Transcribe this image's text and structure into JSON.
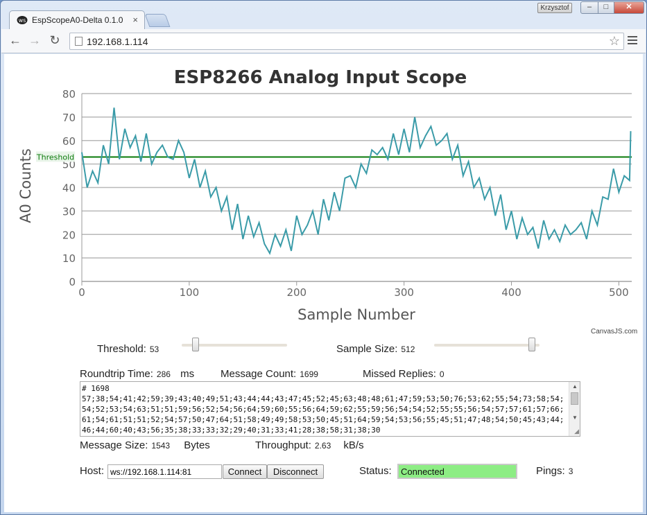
{
  "browser": {
    "tab_title": "EspScopeA0-Delta 0.1.0",
    "user": "Krzysztof",
    "url": "192.168.1.114"
  },
  "chart_data": {
    "type": "line",
    "title": "ESP8266 Analog Input Scope",
    "xlabel": "Sample Number",
    "ylabel": "A0 Counts",
    "xlim": [
      0,
      512
    ],
    "ylim": [
      0,
      80
    ],
    "x_ticks": [
      0,
      100,
      200,
      300,
      400,
      500
    ],
    "y_ticks": [
      0,
      10,
      20,
      30,
      40,
      50,
      60,
      70,
      80
    ],
    "grid": true,
    "line_color": "#3a9ba8",
    "threshold": {
      "label": "Threshold",
      "value": 53,
      "color": "#0a7a0a"
    },
    "series": [
      {
        "x": [
          0,
          5,
          10,
          15,
          20,
          25,
          30,
          35,
          40,
          45,
          50,
          55,
          60,
          65,
          70,
          75,
          80,
          85,
          90,
          95,
          100,
          105,
          110,
          115,
          120,
          125,
          130,
          135,
          140,
          145,
          150,
          155,
          160,
          165,
          170,
          175,
          180,
          185,
          190,
          195,
          200,
          205,
          210,
          215,
          220,
          225,
          230,
          235,
          240,
          245,
          250,
          255,
          260,
          265,
          270,
          275,
          280,
          285,
          290,
          295,
          300,
          305,
          310,
          315,
          320,
          325,
          330,
          335,
          340,
          345,
          350,
          355,
          360,
          365,
          370,
          375,
          380,
          385,
          390,
          395,
          400,
          405,
          410,
          415,
          420,
          425,
          430,
          435,
          440,
          445,
          450,
          455,
          460,
          465,
          470,
          475,
          480,
          485,
          490,
          495,
          500,
          505,
          510,
          511
        ],
        "y": [
          55,
          40,
          47,
          42,
          58,
          50,
          74,
          52,
          65,
          57,
          62,
          51,
          63,
          50,
          55,
          58,
          53,
          52,
          60,
          55,
          44,
          52,
          40,
          47,
          36,
          40,
          30,
          36,
          22,
          33,
          18,
          28,
          19,
          25,
          16,
          12,
          20,
          15,
          22,
          13,
          28,
          20,
          24,
          30,
          20,
          35,
          26,
          38,
          30,
          44,
          45,
          40,
          50,
          46,
          56,
          54,
          57,
          52,
          63,
          54,
          65,
          55,
          70,
          57,
          62,
          66,
          58,
          60,
          63,
          52,
          58,
          45,
          51,
          40,
          44,
          35,
          40,
          28,
          37,
          22,
          30,
          18,
          27,
          20,
          23,
          14,
          26,
          18,
          22,
          17,
          24,
          20,
          22,
          25,
          18,
          30,
          24,
          36,
          35,
          48,
          38,
          45,
          43,
          64
        ]
      }
    ]
  },
  "canvasjs_credit": "CanvasJS.com",
  "controls": {
    "threshold_label": "Threshold:",
    "threshold_value": "53",
    "threshold_fraction": 0.104,
    "sample_size_label": "Sample Size:",
    "sample_size_value": "512",
    "sample_size_fraction": 0.96
  },
  "stats": {
    "roundtrip_label": "Roundtrip Time:",
    "roundtrip_value": "286",
    "roundtrip_unit": "ms",
    "message_count_label": "Message Count:",
    "message_count_value": "1699",
    "missed_label": "Missed Replies:",
    "missed_value": "0",
    "message_size_label": "Message Size:",
    "message_size_value": "1543",
    "message_size_unit": "Bytes",
    "throughput_label": "Throughput:",
    "throughput_value": "2.63",
    "throughput_unit": "kB/s"
  },
  "log_text": "# 1698\n57;38;54;41;42;59;39;43;40;49;51;43;44;44;43;47;45;52;45;63;48;48;61;47;59;53;50;76;53;62;55;54;73;58;54;54;52;53;54;63;51;51;59;56;52;54;56;64;59;60;55;56;64;59;62;55;59;56;54;54;52;55;55;56;54;57;57;61;57;66;61;54;61;51;51;52;54;57;50;47;64;51;58;49;49;58;53;50;45;51;64;59;54;53;56;55;45;51;47;48;54;50;45;43;44;46;44;60;40;43;56;35;38;33;33;32;29;40;31;33;41;28;38;58;31;38;30",
  "connection": {
    "host_label": "Host:",
    "host_value": "ws://192.168.1.114:81",
    "connect_label": "Connect",
    "disconnect_label": "Disconnect",
    "status_label": "Status:",
    "status_value": "Connected",
    "pings_label": "Pings:",
    "pings_value": "3"
  }
}
